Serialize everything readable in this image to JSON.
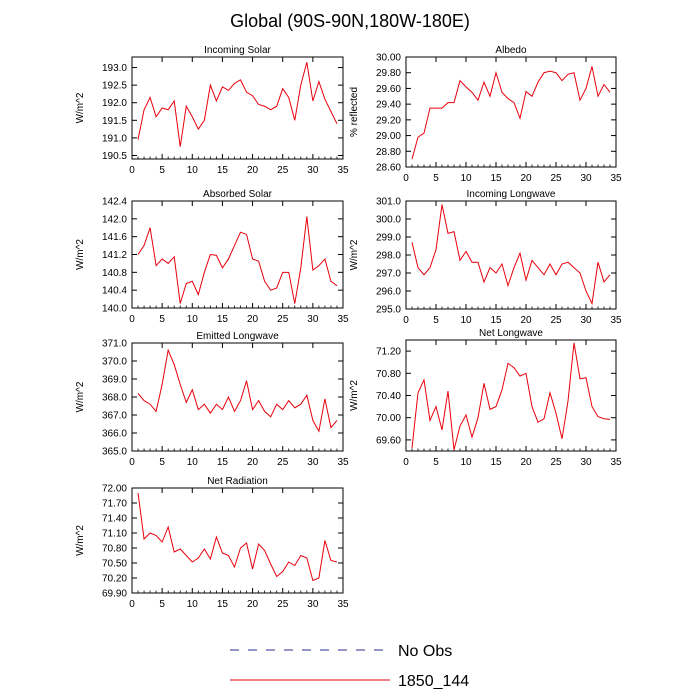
{
  "page": {
    "title": "Global (90S-90N,180W-180E)"
  },
  "legend": [
    {
      "label": "No Obs",
      "style": "dashed",
      "color": "#2b2b8f"
    },
    {
      "label": "1850_144",
      "style": "solid",
      "color": "#e8000b"
    }
  ],
  "chart_data": [
    {
      "id": "incoming-solar",
      "type": "line",
      "title": "Incoming Solar",
      "ylabel": "W/m^2",
      "xlim": [
        0,
        35
      ],
      "ylim": [
        190.4,
        193.3
      ],
      "xticks": [
        0,
        5,
        10,
        15,
        20,
        25,
        30,
        35
      ],
      "yticks": [
        190.5,
        191.0,
        191.5,
        192.0,
        192.5,
        193.0
      ],
      "ytick_labels": [
        "190.5",
        "191.0",
        "191.5",
        "192.0",
        "192.5",
        "193.0"
      ],
      "series": [
        {
          "color": "#e8000b",
          "x": [
            1,
            2,
            3,
            4,
            5,
            6,
            7,
            8,
            9,
            10,
            11,
            12,
            13,
            14,
            15,
            16,
            17,
            18,
            19,
            20,
            21,
            22,
            23,
            24,
            25,
            26,
            27,
            28,
            29,
            30,
            31,
            32,
            33,
            34
          ],
          "y": [
            190.95,
            191.8,
            192.15,
            191.6,
            191.85,
            191.8,
            192.05,
            190.75,
            191.9,
            191.6,
            191.25,
            191.5,
            192.5,
            192.05,
            192.45,
            192.35,
            192.55,
            192.65,
            192.3,
            192.2,
            191.95,
            191.9,
            191.8,
            191.9,
            192.4,
            192.15,
            191.5,
            192.5,
            193.15,
            192.05,
            192.6,
            192.1,
            191.75,
            191.4
          ]
        }
      ]
    },
    {
      "id": "albedo",
      "type": "line",
      "title": "Albedo",
      "ylabel": "% reflected",
      "xlim": [
        0,
        35
      ],
      "ylim": [
        28.6,
        30.0
      ],
      "xticks": [
        0,
        5,
        10,
        15,
        20,
        25,
        30,
        35
      ],
      "yticks": [
        28.6,
        28.8,
        29.0,
        29.2,
        29.4,
        29.6,
        29.8,
        30.0
      ],
      "ytick_labels": [
        "28.60",
        "28.80",
        "29.00",
        "29.20",
        "29.40",
        "29.60",
        "29.80",
        "30.00"
      ],
      "series": [
        {
          "color": "#e8000b",
          "x": [
            1,
            2,
            3,
            4,
            5,
            6,
            7,
            8,
            9,
            10,
            11,
            12,
            13,
            14,
            15,
            16,
            17,
            18,
            19,
            20,
            21,
            22,
            23,
            24,
            25,
            26,
            27,
            28,
            29,
            30,
            31,
            32,
            33,
            34
          ],
          "y": [
            28.7,
            28.98,
            29.03,
            29.35,
            29.35,
            29.35,
            29.42,
            29.42,
            29.7,
            29.62,
            29.55,
            29.45,
            29.68,
            29.5,
            29.8,
            29.55,
            29.47,
            29.42,
            29.22,
            29.56,
            29.5,
            29.68,
            29.8,
            29.82,
            29.8,
            29.7,
            29.78,
            29.8,
            29.45,
            29.6,
            29.88,
            29.5,
            29.65,
            29.55
          ]
        }
      ]
    },
    {
      "id": "absorbed-solar",
      "type": "line",
      "title": "Absorbed Solar",
      "ylabel": "W/m^2",
      "xlim": [
        0,
        35
      ],
      "ylim": [
        140.0,
        142.4
      ],
      "xticks": [
        0,
        5,
        10,
        15,
        20,
        25,
        30,
        35
      ],
      "yticks": [
        140.0,
        140.4,
        140.8,
        141.2,
        141.6,
        142.0,
        142.4
      ],
      "ytick_labels": [
        "140.0",
        "140.4",
        "140.8",
        "141.2",
        "141.6",
        "142.0",
        "142.4"
      ],
      "series": [
        {
          "color": "#e8000b",
          "x": [
            1,
            2,
            3,
            4,
            5,
            6,
            7,
            8,
            9,
            10,
            11,
            12,
            13,
            14,
            15,
            16,
            17,
            18,
            19,
            20,
            21,
            22,
            23,
            24,
            25,
            26,
            27,
            28,
            29,
            30,
            31,
            32,
            33,
            34
          ],
          "y": [
            141.2,
            141.4,
            141.8,
            140.95,
            141.1,
            141.0,
            141.15,
            140.1,
            140.55,
            140.6,
            140.3,
            140.8,
            141.2,
            141.18,
            140.9,
            141.1,
            141.4,
            141.7,
            141.65,
            141.1,
            141.05,
            140.6,
            140.4,
            140.45,
            140.8,
            140.8,
            140.1,
            140.9,
            142.05,
            140.85,
            140.95,
            141.1,
            140.6,
            140.5
          ]
        }
      ]
    },
    {
      "id": "incoming-longwave",
      "type": "line",
      "title": "Incoming Longwave",
      "ylabel": "W/m^2",
      "xlim": [
        0,
        35
      ],
      "ylim": [
        295.0,
        301.0
      ],
      "xticks": [
        0,
        5,
        10,
        15,
        20,
        25,
        30,
        35
      ],
      "yticks": [
        295.0,
        296.0,
        297.0,
        298.0,
        299.0,
        300.0,
        301.0
      ],
      "ytick_labels": [
        "295.0",
        "296.0",
        "297.0",
        "298.0",
        "299.0",
        "300.0",
        "301.0"
      ],
      "series": [
        {
          "color": "#e8000b",
          "x": [
            1,
            2,
            3,
            4,
            5,
            6,
            7,
            8,
            9,
            10,
            11,
            12,
            13,
            14,
            15,
            16,
            17,
            18,
            19,
            20,
            21,
            22,
            23,
            24,
            25,
            26,
            27,
            28,
            29,
            30,
            31,
            32,
            33,
            34
          ],
          "y": [
            298.7,
            297.3,
            296.9,
            297.3,
            298.3,
            300.8,
            299.2,
            299.3,
            297.7,
            298.2,
            297.6,
            297.6,
            296.5,
            297.3,
            297.0,
            297.5,
            296.3,
            297.3,
            298.1,
            296.6,
            297.7,
            297.3,
            296.9,
            297.5,
            296.9,
            297.5,
            297.6,
            297.3,
            297.0,
            296.0,
            295.3,
            297.6,
            296.5,
            296.9
          ]
        }
      ]
    },
    {
      "id": "emitted-longwave",
      "type": "line",
      "title": "Emitted Longwave",
      "ylabel": "W/m^2",
      "xlim": [
        0,
        35
      ],
      "ylim": [
        365.0,
        371.0
      ],
      "xticks": [
        0,
        5,
        10,
        15,
        20,
        25,
        30,
        35
      ],
      "yticks": [
        365.0,
        366.0,
        367.0,
        368.0,
        369.0,
        370.0,
        371.0
      ],
      "ytick_labels": [
        "365.0",
        "366.0",
        "367.0",
        "368.0",
        "369.0",
        "370.0",
        "371.0"
      ],
      "series": [
        {
          "color": "#e8000b",
          "x": [
            1,
            2,
            3,
            4,
            5,
            6,
            7,
            8,
            9,
            10,
            11,
            12,
            13,
            14,
            15,
            16,
            17,
            18,
            19,
            20,
            21,
            22,
            23,
            24,
            25,
            26,
            27,
            28,
            29,
            30,
            31,
            32,
            33,
            34
          ],
          "y": [
            368.2,
            367.8,
            367.6,
            367.2,
            368.7,
            370.6,
            369.8,
            368.7,
            367.7,
            368.4,
            367.3,
            367.6,
            367.1,
            367.6,
            367.3,
            368.0,
            367.2,
            367.8,
            368.9,
            367.3,
            367.8,
            367.2,
            366.9,
            367.6,
            367.3,
            367.8,
            367.4,
            367.6,
            368.1,
            366.7,
            366.1,
            367.9,
            366.3,
            366.7
          ]
        }
      ]
    },
    {
      "id": "net-longwave",
      "type": "line",
      "title": "Net Longwave",
      "ylabel": "W/m^2",
      "xlim": [
        0,
        35
      ],
      "ylim": [
        69.4,
        71.4
      ],
      "xticks": [
        0,
        5,
        10,
        15,
        20,
        25,
        30,
        35
      ],
      "yticks": [
        69.6,
        70.0,
        70.4,
        70.8,
        71.2
      ],
      "ytick_labels": [
        "69.60",
        "70.00",
        "70.40",
        "70.80",
        "71.20"
      ],
      "series": [
        {
          "color": "#e8000b",
          "x": [
            1,
            2,
            3,
            4,
            5,
            6,
            7,
            8,
            9,
            10,
            11,
            12,
            13,
            14,
            15,
            16,
            17,
            18,
            19,
            20,
            21,
            22,
            23,
            24,
            25,
            26,
            27,
            28,
            29,
            30,
            31,
            32,
            33,
            34
          ],
          "y": [
            69.45,
            70.45,
            70.68,
            69.95,
            70.2,
            69.78,
            70.48,
            69.42,
            69.85,
            70.05,
            69.65,
            70.0,
            70.62,
            70.15,
            70.2,
            70.5,
            70.98,
            70.9,
            70.75,
            70.8,
            70.2,
            69.92,
            69.98,
            70.45,
            70.08,
            69.62,
            70.3,
            71.35,
            70.7,
            70.72,
            70.2,
            70.02,
            69.98,
            69.97
          ]
        }
      ]
    },
    {
      "id": "net-radiation",
      "type": "line",
      "title": "Net Radiation",
      "ylabel": "W/m^2",
      "xlim": [
        0,
        35
      ],
      "ylim": [
        69.9,
        72.0
      ],
      "xticks": [
        0,
        5,
        10,
        15,
        20,
        25,
        30,
        35
      ],
      "yticks": [
        69.9,
        70.2,
        70.5,
        70.8,
        71.1,
        71.4,
        71.7,
        72.0
      ],
      "ytick_labels": [
        "69.90",
        "70.20",
        "70.50",
        "70.80",
        "71.10",
        "71.40",
        "71.70",
        "72.00"
      ],
      "series": [
        {
          "color": "#e8000b",
          "x": [
            1,
            2,
            3,
            4,
            5,
            6,
            7,
            8,
            9,
            10,
            11,
            12,
            13,
            14,
            15,
            16,
            17,
            18,
            19,
            20,
            21,
            22,
            23,
            24,
            25,
            26,
            27,
            28,
            29,
            30,
            31,
            32,
            33,
            34
          ],
          "y": [
            71.9,
            70.98,
            71.1,
            71.05,
            70.92,
            71.22,
            70.72,
            70.78,
            70.65,
            70.52,
            70.6,
            70.78,
            70.58,
            71.02,
            70.7,
            70.65,
            70.42,
            70.8,
            70.9,
            70.38,
            70.88,
            70.75,
            70.48,
            70.23,
            70.33,
            70.52,
            70.45,
            70.65,
            70.6,
            70.15,
            70.2,
            70.95,
            70.55,
            70.52
          ]
        }
      ]
    }
  ]
}
